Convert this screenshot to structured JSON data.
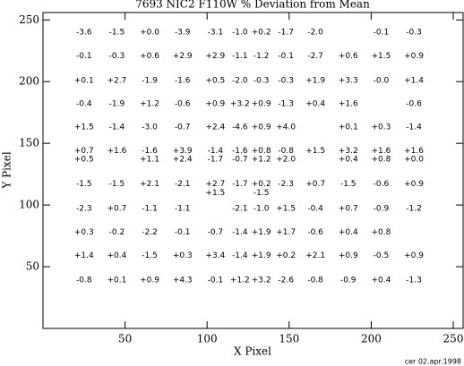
{
  "chart_data": {
    "type": "text-scatter",
    "title": "7693 NIC2 F110W % Deviation from Mean",
    "xlabel": "X Pixel",
    "ylabel": "Y Pixel",
    "footer": "cer 02.apr.1998",
    "xlim": [
      0,
      256
    ],
    "ylim": [
      0,
      256
    ],
    "xticks": [
      50,
      100,
      150,
      200,
      250
    ],
    "yticks": [
      50,
      100,
      150,
      200,
      250
    ],
    "color": "#000000",
    "x": [
      25,
      45,
      65,
      85,
      105,
      120,
      133,
      148,
      166,
      206,
      226,
      25,
      45,
      65,
      85,
      105,
      120,
      133,
      148,
      166,
      186,
      206,
      226,
      25,
      45,
      65,
      85,
      105,
      120,
      133,
      148,
      166,
      186,
      206,
      226,
      25,
      45,
      65,
      85,
      105,
      120,
      133,
      148,
      166,
      186,
      226,
      25,
      45,
      65,
      85,
      105,
      120,
      133,
      148,
      186,
      206,
      226,
      25,
      45,
      65,
      85,
      105,
      120,
      133,
      148,
      166,
      186,
      206,
      226,
      25,
      65,
      85,
      105,
      120,
      133,
      148,
      186,
      206,
      226,
      25,
      45,
      65,
      85,
      105,
      120,
      133,
      148,
      166,
      186,
      206,
      226,
      105,
      133,
      25,
      45,
      65,
      85,
      120,
      133,
      148,
      166,
      186,
      206,
      226,
      25,
      45,
      65,
      85,
      105,
      120,
      133,
      148,
      166,
      186,
      206,
      25,
      45,
      65,
      85,
      105,
      120,
      133,
      148,
      166,
      186,
      206,
      226,
      25,
      45,
      65,
      85,
      105,
      120,
      133,
      148,
      166,
      186,
      206,
      226
    ],
    "y": [
      240,
      240,
      240,
      240,
      240,
      240,
      240,
      240,
      240,
      240,
      240,
      221,
      221,
      221,
      221,
      221,
      221,
      221,
      221,
      221,
      221,
      221,
      221,
      201,
      201,
      201,
      201,
      201,
      201,
      201,
      201,
      201,
      201,
      201,
      201,
      182,
      182,
      182,
      182,
      182,
      182,
      182,
      182,
      182,
      182,
      182,
      163,
      163,
      163,
      163,
      163,
      163,
      163,
      163,
      163,
      163,
      163,
      144,
      144,
      144,
      144,
      144,
      144,
      144,
      144,
      144,
      144,
      144,
      144,
      137,
      137,
      137,
      137,
      137,
      137,
      137,
      137,
      137,
      137,
      117,
      117,
      117,
      117,
      117,
      117,
      117,
      117,
      117,
      117,
      117,
      117,
      110,
      110,
      97,
      97,
      97,
      97,
      97,
      97,
      97,
      97,
      97,
      97,
      97,
      78,
      78,
      78,
      78,
      78,
      78,
      78,
      78,
      78,
      78,
      78,
      59,
      59,
      59,
      59,
      59,
      59,
      59,
      59,
      59,
      59,
      59,
      59,
      39,
      39,
      39,
      39,
      39,
      39,
      39,
      39,
      39,
      39,
      39,
      39
    ],
    "values": [
      -3.6,
      -1.5,
      0,
      -3.9,
      -3.1,
      -1.0,
      0.2,
      -1.7,
      -2.0,
      -0.1,
      -0.3,
      -0.1,
      -0.3,
      0.6,
      2.9,
      2.9,
      -1.1,
      -1.2,
      -0.1,
      -2.7,
      0.6,
      1.5,
      0.9,
      0.1,
      2.7,
      -1.9,
      -1.6,
      0.5,
      -2.0,
      -0.3,
      -0.3,
      1.9,
      3.3,
      0,
      1.4,
      -0.4,
      -1.9,
      1.2,
      -0.6,
      0.9,
      3.2,
      0.9,
      -1.3,
      0.4,
      1.6,
      -0.6,
      1.5,
      -1.4,
      -3.0,
      -0.7,
      2.4,
      -4.6,
      0.9,
      4.0,
      0.1,
      0.3,
      -1.4,
      0.7,
      1.6,
      -1.6,
      3.9,
      -1.4,
      -1.6,
      0.8,
      -0.8,
      1.5,
      3.2,
      1.6,
      1.6,
      0.5,
      1.1,
      2.4,
      -1.7,
      -0.7,
      1.2,
      2.0,
      0.4,
      0.8,
      0,
      -1.5,
      -1.5,
      2.1,
      -2.1,
      2.7,
      -1.7,
      0.2,
      -2.3,
      0.7,
      -1.5,
      -0.6,
      0.9,
      1.5,
      -1.5,
      -2.3,
      0.7,
      -1.1,
      -1.1,
      -2.1,
      -1.0,
      1.5,
      -0.4,
      0.7,
      -0.9,
      -1.2,
      0.3,
      -0.2,
      -2.2,
      -0.1,
      -0.7,
      -1.4,
      1.9,
      1.7,
      -0.6,
      0.4,
      0.8,
      1.4,
      0.4,
      -1.5,
      0.3,
      3.4,
      -1.4,
      1.9,
      0.2,
      2.1,
      0.9,
      -0.5,
      0.9,
      -0.8,
      0.1,
      0.9,
      4.3,
      -0.1,
      1.2,
      3.2,
      -2.6,
      -0.8,
      -0.9,
      0.4,
      -1.3
    ],
    "value_labels": [
      "-3.6",
      "-1.5",
      "+0.0",
      "-3.9",
      "-3.1",
      "-1.0",
      "+0.2",
      "-1.7",
      "-2.0",
      "-0.1",
      "-0.3",
      "-0.1",
      "-0.3",
      "+0.6",
      "+2.9",
      "+2.9",
      "-1.1",
      "-1.2",
      "-0.1",
      "-2.7",
      "+0.6",
      "+1.5",
      "+0.9",
      "+0.1",
      "+2.7",
      "-1.9",
      "-1.6",
      "+0.5",
      "-2.0",
      "-0.3",
      "-0.3",
      "+1.9",
      "+3.3",
      "-0.0",
      "+1.4",
      "-0.4",
      "-1.9",
      "+1.2",
      "-0.6",
      "+0.9",
      "+3.2",
      "+0.9",
      "-1.3",
      "+0.4",
      "+1.6",
      "-0.6",
      "+1.5",
      "-1.4",
      "-3.0",
      "-0.7",
      "+2.4",
      "-4.6",
      "+0.9",
      "+4.0",
      "+0.1",
      "+0.3",
      "-1.4",
      "+0.7",
      "+1.6",
      "-1.6",
      "+3.9",
      "-1.4",
      "-1.6",
      "+0.8",
      "-0.8",
      "+1.5",
      "+3.2",
      "+1.6",
      "+1.6",
      "+0.5",
      "+1.1",
      "+2.4",
      "-1.7",
      "-0.7",
      "+1.2",
      "+2.0",
      "+0.4",
      "+0.8",
      "+0.0",
      "-1.5",
      "-1.5",
      "+2.1",
      "-2.1",
      "+2.7",
      "-1.7",
      "+0.2",
      "-2.3",
      "+0.7",
      "-1.5",
      "-0.6",
      "+0.9",
      "+1.5",
      "-1.5",
      "-2.3",
      "+0.7",
      "-1.1",
      "-1.1",
      "-2.1",
      "-1.0",
      "+1.5",
      "-0.4",
      "+0.7",
      "-0.9",
      "-1.2",
      "+0.3",
      "-0.2",
      "-2.2",
      "-0.1",
      "-0.7",
      "-1.4",
      "+1.9",
      "+1.7",
      "-0.6",
      "+0.4",
      "+0.8",
      "+1.4",
      "+0.4",
      "-1.5",
      "+0.3",
      "+3.4",
      "-1.4",
      "+1.9",
      "+0.2",
      "+2.1",
      "+0.9",
      "-0.5",
      "+0.9",
      "-0.8",
      "+0.1",
      "+0.9",
      "+4.3",
      "-0.1",
      "+1.2",
      "+3.2",
      "-2.6",
      "-0.8",
      "-0.9",
      "+0.4",
      "-1.3"
    ]
  }
}
